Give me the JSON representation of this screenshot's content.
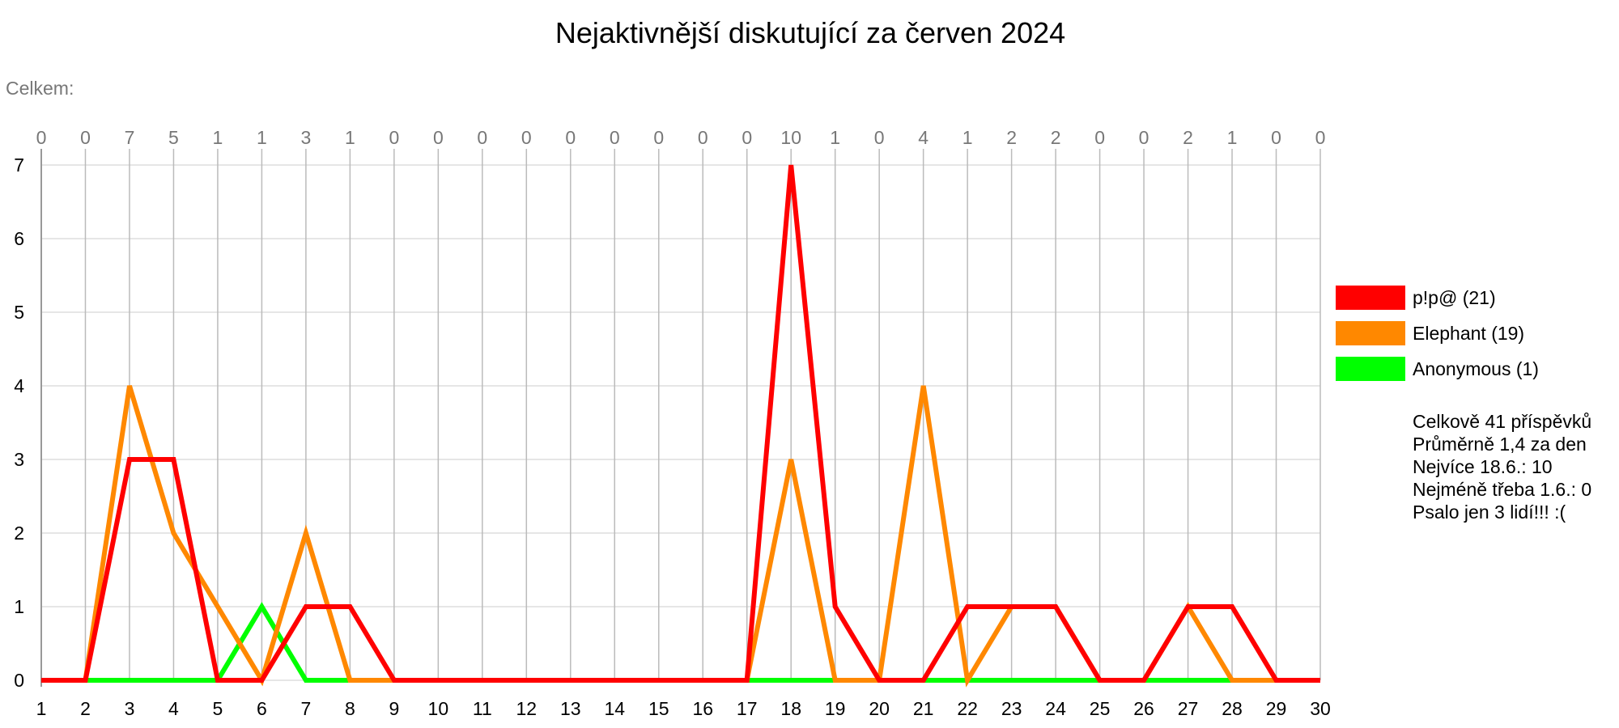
{
  "chart_data": {
    "type": "line",
    "title": "Nejaktivnější diskutující za červen 2024",
    "totals_label": "Celkem:",
    "x": [
      1,
      2,
      3,
      4,
      5,
      6,
      7,
      8,
      9,
      10,
      11,
      12,
      13,
      14,
      15,
      16,
      17,
      18,
      19,
      20,
      21,
      22,
      23,
      24,
      25,
      26,
      27,
      28,
      29,
      30
    ],
    "daily_totals": [
      0,
      0,
      7,
      5,
      1,
      1,
      3,
      1,
      0,
      0,
      0,
      0,
      0,
      0,
      0,
      0,
      0,
      10,
      1,
      0,
      4,
      1,
      2,
      2,
      0,
      0,
      2,
      1,
      0,
      0
    ],
    "ylim": [
      0,
      7
    ],
    "yticks": [
      0,
      1,
      2,
      3,
      4,
      5,
      6,
      7
    ],
    "grid": true,
    "legend_position": "right",
    "series": [
      {
        "name": "Anonymous (1)",
        "color": "#00ff00",
        "values": [
          0,
          0,
          0,
          0,
          0,
          1,
          0,
          0,
          0,
          0,
          0,
          0,
          0,
          0,
          0,
          0,
          0,
          0,
          0,
          0,
          0,
          0,
          0,
          0,
          0,
          0,
          0,
          0,
          0,
          0
        ]
      },
      {
        "name": "Elephant (19)",
        "color": "#ff8800",
        "values": [
          0,
          0,
          4,
          2,
          1,
          0,
          2,
          0,
          0,
          0,
          0,
          0,
          0,
          0,
          0,
          0,
          0,
          3,
          0,
          0,
          4,
          0,
          1,
          1,
          0,
          0,
          1,
          0,
          0,
          0
        ]
      },
      {
        "name": "p!p@ (21)",
        "color": "#ff0000",
        "values": [
          0,
          0,
          3,
          3,
          0,
          0,
          1,
          1,
          0,
          0,
          0,
          0,
          0,
          0,
          0,
          0,
          0,
          7,
          1,
          0,
          0,
          1,
          1,
          1,
          0,
          0,
          1,
          1,
          0,
          0
        ]
      }
    ],
    "legend_order": [
      2,
      1,
      0
    ],
    "stats": [
      "Celkově 41 příspěvků",
      "Průměrně 1,4 za den",
      "Nejvíce 18.6.: 10",
      "Nejméně třeba 1.6.: 0",
      "Psalo jen 3 lidí!!! :("
    ]
  }
}
